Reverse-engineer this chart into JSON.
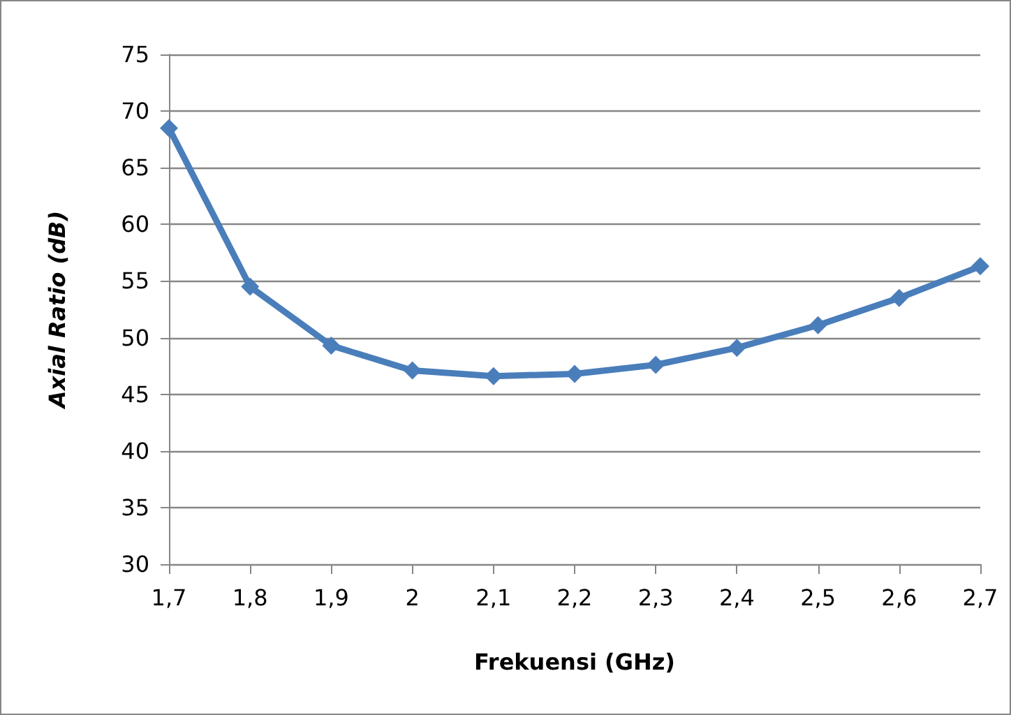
{
  "chart_data": {
    "type": "line",
    "xlabel": "Frekuensi (GHz)",
    "ylabel": "Axial Ratio (dB)",
    "categories": [
      "1,7",
      "1,8",
      "1,9",
      "2",
      "2,1",
      "2,2",
      "2,3",
      "2,4",
      "2,5",
      "2,6",
      "2,7"
    ],
    "series": [
      {
        "color": "#4a7ebb",
        "values": [
          68.5,
          54.5,
          49.3,
          47.1,
          46.6,
          46.8,
          47.6,
          49.1,
          51.1,
          53.5,
          56.3
        ]
      }
    ],
    "ylim": [
      30,
      75
    ],
    "yticks": [
      30,
      35,
      40,
      45,
      50,
      55,
      60,
      65,
      70,
      75
    ],
    "grid": "y",
    "marker": "diamond",
    "line_style": "solid"
  }
}
